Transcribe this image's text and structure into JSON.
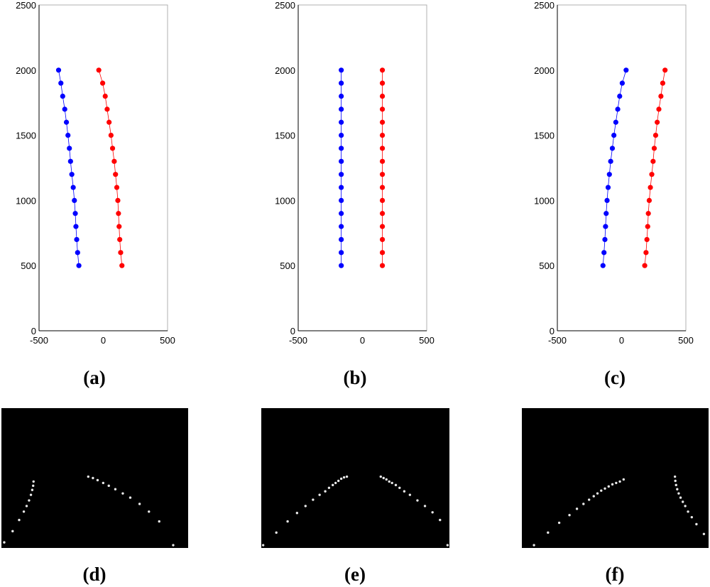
{
  "chart_data": [
    {
      "type": "scatter",
      "caption": "(a)",
      "xlim": [
        -500,
        500
      ],
      "ylim": [
        0,
        2500
      ],
      "xticks": [
        "-500",
        "0",
        "500"
      ],
      "yticks": [
        "0",
        "500",
        "1000",
        "1500",
        "2000",
        "2500"
      ],
      "series": [
        {
          "color": "#0000ff",
          "x": [
            -190,
            -200,
            -207,
            -213,
            -218,
            -225,
            -234,
            -245,
            -255,
            -264,
            -275,
            -287,
            -300,
            -316,
            -330,
            -348
          ],
          "y": [
            500,
            600,
            700,
            800,
            900,
            1000,
            1100,
            1200,
            1300,
            1400,
            1500,
            1600,
            1700,
            1800,
            1900,
            2000
          ]
        },
        {
          "color": "#ff0000",
          "x": [
            145,
            135,
            128,
            123,
            118,
            113,
            105,
            95,
            85,
            72,
            60,
            45,
            30,
            15,
            -5,
            -35
          ],
          "y": [
            500,
            600,
            700,
            800,
            900,
            1000,
            1100,
            1200,
            1300,
            1400,
            1500,
            1600,
            1700,
            1800,
            1900,
            2000
          ]
        }
      ]
    },
    {
      "type": "scatter",
      "caption": "(b)",
      "xlim": [
        -500,
        500
      ],
      "ylim": [
        0,
        2500
      ],
      "xticks": [
        "-500",
        "0",
        "500"
      ],
      "yticks": [
        "0",
        "500",
        "1000",
        "1500",
        "2000",
        "2500"
      ],
      "series": [
        {
          "color": "#0000ff",
          "x": [
            -165,
            -165,
            -165,
            -165,
            -165,
            -165,
            -165,
            -165,
            -165,
            -165,
            -165,
            -165,
            -165,
            -165,
            -165,
            -165
          ],
          "y": [
            500,
            600,
            700,
            800,
            900,
            1000,
            1100,
            1200,
            1300,
            1400,
            1500,
            1600,
            1700,
            1800,
            1900,
            2000
          ]
        },
        {
          "color": "#ff0000",
          "x": [
            155,
            155,
            155,
            155,
            155,
            155,
            155,
            155,
            155,
            155,
            155,
            155,
            155,
            155,
            155,
            155
          ],
          "y": [
            500,
            600,
            700,
            800,
            900,
            1000,
            1100,
            1200,
            1300,
            1400,
            1500,
            1600,
            1700,
            1800,
            1900,
            2000
          ]
        }
      ]
    },
    {
      "type": "scatter",
      "caption": "(c)",
      "xlim": [
        -500,
        500
      ],
      "ylim": [
        0,
        2500
      ],
      "xticks": [
        "-500",
        "0",
        "500"
      ],
      "yticks": [
        "0",
        "500",
        "1000",
        "1500",
        "2000",
        "2500"
      ],
      "series": [
        {
          "color": "#0000ff",
          "x": [
            -145,
            -137,
            -130,
            -125,
            -120,
            -113,
            -105,
            -95,
            -85,
            -72,
            -60,
            -45,
            -30,
            -15,
            5,
            35
          ],
          "y": [
            500,
            600,
            700,
            800,
            900,
            1000,
            1100,
            1200,
            1300,
            1400,
            1500,
            1600,
            1700,
            1800,
            1900,
            2000
          ]
        },
        {
          "color": "#ff0000",
          "x": [
            180,
            190,
            197,
            203,
            208,
            215,
            224,
            235,
            245,
            254,
            265,
            277,
            290,
            306,
            320,
            338
          ],
          "y": [
            500,
            600,
            700,
            800,
            900,
            1000,
            1100,
            1200,
            1300,
            1400,
            1500,
            1600,
            1700,
            1800,
            1900,
            2000
          ]
        }
      ]
    }
  ],
  "image_panels": [
    {
      "caption": "(d)",
      "dots": [
        [
          0.015,
          0.96
        ],
        [
          0.06,
          0.88
        ],
        [
          0.095,
          0.8
        ],
        [
          0.12,
          0.74
        ],
        [
          0.135,
          0.7
        ],
        [
          0.148,
          0.66
        ],
        [
          0.158,
          0.62
        ],
        [
          0.165,
          0.585
        ],
        [
          0.17,
          0.555
        ],
        [
          0.172,
          0.525
        ],
        [
          0.465,
          0.49
        ],
        [
          0.49,
          0.5
        ],
        [
          0.515,
          0.515
        ],
        [
          0.545,
          0.535
        ],
        [
          0.575,
          0.555
        ],
        [
          0.61,
          0.58
        ],
        [
          0.65,
          0.61
        ],
        [
          0.69,
          0.64
        ],
        [
          0.74,
          0.685
        ],
        [
          0.79,
          0.74
        ],
        [
          0.845,
          0.81
        ],
        [
          0.92,
          0.98
        ]
      ]
    },
    {
      "caption": "(e)",
      "dots": [
        [
          0.01,
          0.98
        ],
        [
          0.08,
          0.89
        ],
        [
          0.14,
          0.81
        ],
        [
          0.19,
          0.75
        ],
        [
          0.235,
          0.7
        ],
        [
          0.275,
          0.655
        ],
        [
          0.31,
          0.62
        ],
        [
          0.34,
          0.595
        ],
        [
          0.36,
          0.57
        ],
        [
          0.38,
          0.55
        ],
        [
          0.395,
          0.535
        ],
        [
          0.41,
          0.52
        ],
        [
          0.425,
          0.505
        ],
        [
          0.44,
          0.495
        ],
        [
          0.455,
          0.49
        ],
        [
          0.635,
          0.49
        ],
        [
          0.65,
          0.5
        ],
        [
          0.665,
          0.51
        ],
        [
          0.68,
          0.525
        ],
        [
          0.695,
          0.535
        ],
        [
          0.715,
          0.55
        ],
        [
          0.735,
          0.57
        ],
        [
          0.76,
          0.595
        ],
        [
          0.79,
          0.62
        ],
        [
          0.83,
          0.66
        ],
        [
          0.87,
          0.7
        ],
        [
          0.91,
          0.745
        ],
        [
          0.95,
          0.8
        ],
        [
          0.99,
          0.98
        ]
      ]
    },
    {
      "caption": "(f)",
      "dots": [
        [
          0.065,
          0.98
        ],
        [
          0.14,
          0.89
        ],
        [
          0.2,
          0.82
        ],
        [
          0.255,
          0.765
        ],
        [
          0.295,
          0.72
        ],
        [
          0.33,
          0.685
        ],
        [
          0.36,
          0.655
        ],
        [
          0.385,
          0.63
        ],
        [
          0.405,
          0.61
        ],
        [
          0.425,
          0.59
        ],
        [
          0.445,
          0.575
        ],
        [
          0.465,
          0.56
        ],
        [
          0.485,
          0.545
        ],
        [
          0.505,
          0.535
        ],
        [
          0.525,
          0.525
        ],
        [
          0.545,
          0.51
        ],
        [
          0.82,
          0.49
        ],
        [
          0.822,
          0.52
        ],
        [
          0.826,
          0.55
        ],
        [
          0.832,
          0.58
        ],
        [
          0.84,
          0.61
        ],
        [
          0.85,
          0.64
        ],
        [
          0.862,
          0.67
        ],
        [
          0.875,
          0.7
        ],
        [
          0.89,
          0.74
        ],
        [
          0.91,
          0.78
        ],
        [
          0.935,
          0.83
        ],
        [
          0.975,
          0.9
        ]
      ]
    }
  ]
}
